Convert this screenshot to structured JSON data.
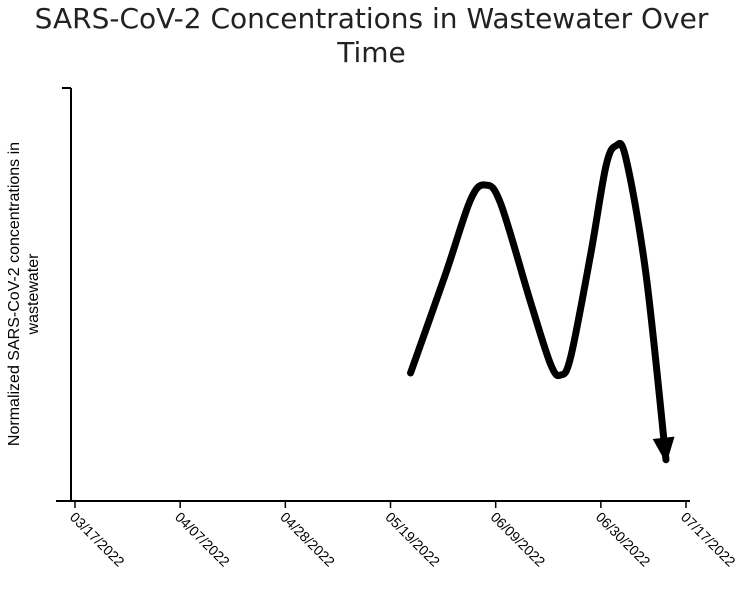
{
  "chart_data": {
    "type": "line",
    "title_lines": [
      "SARS-CoV-2 Concentrations in Wastewater Over",
      "Time"
    ],
    "xlabel": "",
    "ylabel_lines": [
      "Normalized SARS-CoV-2 concentrations in",
      "wastewater"
    ],
    "x_ticks": [
      "03/17/2022",
      "04/07/2022",
      "04/28/2022",
      "05/19/2022",
      "06/09/2022",
      "06/30/2022",
      "07/17/2022"
    ],
    "x_range": [
      "2022-03-17",
      "2022-07-17"
    ],
    "y_range": [
      0,
      1
    ],
    "grid": false,
    "legend": "none",
    "series": [
      {
        "color": "#000000",
        "ends_with_arrow": true,
        "points": [
          {
            "x": "2022-05-23",
            "y": 0.31
          },
          {
            "x": "2022-05-30",
            "y": 0.55
          },
          {
            "x": "2022-06-04",
            "y": 0.73
          },
          {
            "x": "2022-06-07",
            "y": 0.765
          },
          {
            "x": "2022-06-10",
            "y": 0.72
          },
          {
            "x": "2022-06-16",
            "y": 0.48
          },
          {
            "x": "2022-06-20",
            "y": 0.33
          },
          {
            "x": "2022-06-22",
            "y": 0.305
          },
          {
            "x": "2022-06-24",
            "y": 0.35
          },
          {
            "x": "2022-06-28",
            "y": 0.6
          },
          {
            "x": "2022-07-01",
            "y": 0.81
          },
          {
            "x": "2022-07-03",
            "y": 0.86
          },
          {
            "x": "2022-07-05",
            "y": 0.83
          },
          {
            "x": "2022-07-09",
            "y": 0.55
          },
          {
            "x": "2022-07-13",
            "y": 0.1
          }
        ]
      }
    ]
  }
}
